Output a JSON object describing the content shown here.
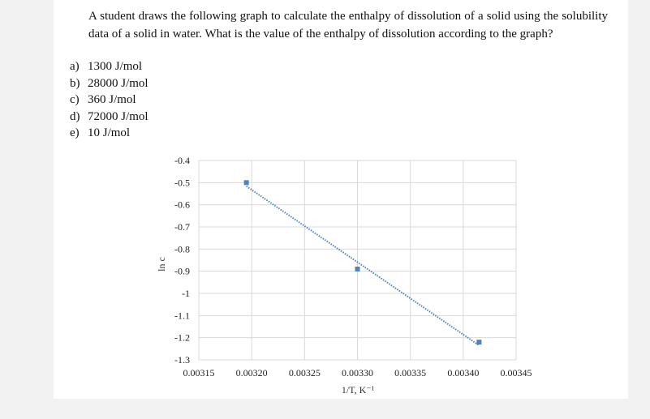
{
  "question": {
    "text": "A student draws the following graph to calculate the enthalpy of dissolution of a solid using the solubility data of a solid in water. What is the value of the enthalpy of dissolution according to the graph?",
    "options": [
      {
        "letter": "a)",
        "text": "1300 J/mol"
      },
      {
        "letter": "b)",
        "text": "28000 J/mol"
      },
      {
        "letter": "c)",
        "text": "360 J/mol"
      },
      {
        "letter": "d)",
        "text": "72000 J/mol"
      },
      {
        "letter": "e)",
        "text": "10 J/mol"
      }
    ]
  },
  "chart_data": {
    "type": "scatter",
    "title": "",
    "xlabel": "1/T, K⁻¹",
    "ylabel": "ln c",
    "xlim": [
      0.00315,
      0.00345
    ],
    "ylim": [
      -1.3,
      -0.4
    ],
    "x_ticks": [
      "0.00315",
      "0.00320",
      "0.00325",
      "0.00330",
      "0.00335",
      "0.00340",
      "0.00345"
    ],
    "y_ticks": [
      "-0.4",
      "-0.5",
      "-0.6",
      "-0.7",
      "-0.8",
      "-0.9",
      "-1",
      "-1.1",
      "-1.2",
      "-1.3"
    ],
    "grid": true,
    "trendline": "linear, dotted",
    "series": [
      {
        "x": [
          0.003195,
          0.0033,
          0.003415
        ],
        "y": [
          -0.5,
          -0.89,
          -1.22
        ],
        "color": "#4f81bd"
      }
    ]
  }
}
